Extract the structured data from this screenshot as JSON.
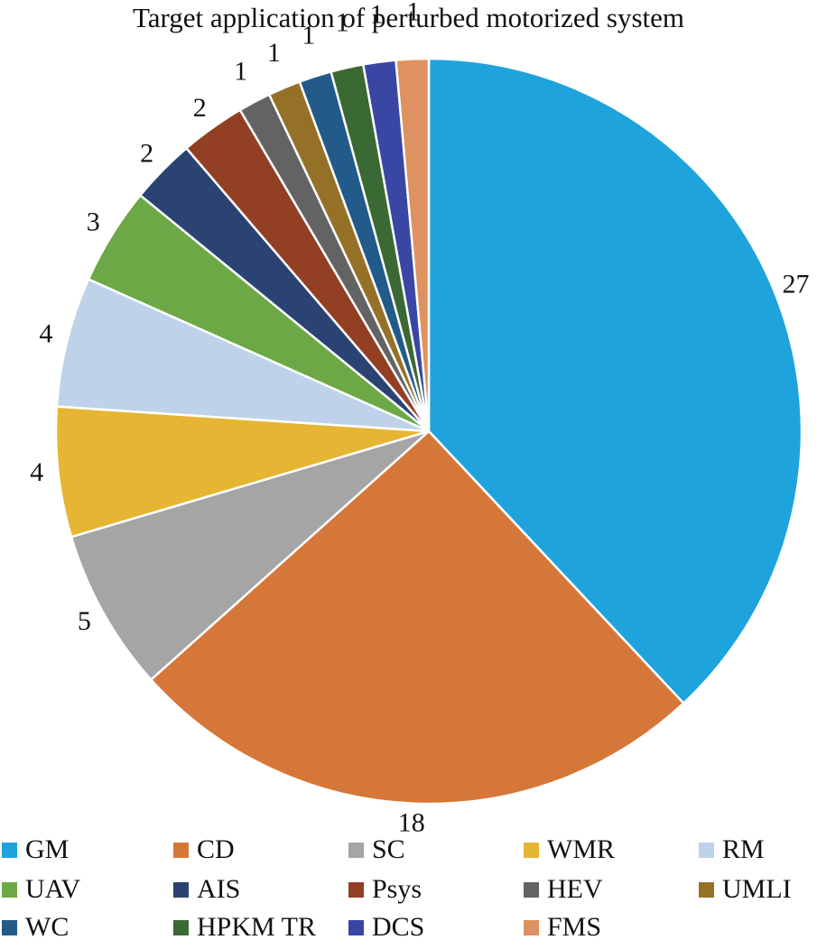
{
  "chart_data": {
    "type": "pie",
    "title": "Target application of perturbed motorized system",
    "categories": [
      "GM",
      "CD",
      "SC",
      "WMR",
      "RM",
      "UAV",
      "AIS",
      "Psys",
      "HEV",
      "UMLI",
      "WC",
      "HPKM TR",
      "DCS",
      "FMS"
    ],
    "values": [
      27,
      18,
      5,
      4,
      4,
      3,
      2,
      2,
      1,
      1,
      1,
      1,
      1,
      1
    ],
    "colors": [
      "#1fa3dc",
      "#d6773a",
      "#a5a5a5",
      "#e6b533",
      "#bed3e9",
      "#6da846",
      "#2a4373",
      "#933f24",
      "#636363",
      "#957128",
      "#225b89",
      "#3b6933",
      "#3a46a3",
      "#de9262"
    ],
    "data_labels": [
      "27",
      "18",
      "5",
      "4",
      "4",
      "3",
      "2",
      "2",
      "1",
      "1",
      "1",
      "1",
      "1",
      "1"
    ],
    "start": "12 o'clock",
    "direction": "clockwise",
    "legend_position": "bottom"
  }
}
